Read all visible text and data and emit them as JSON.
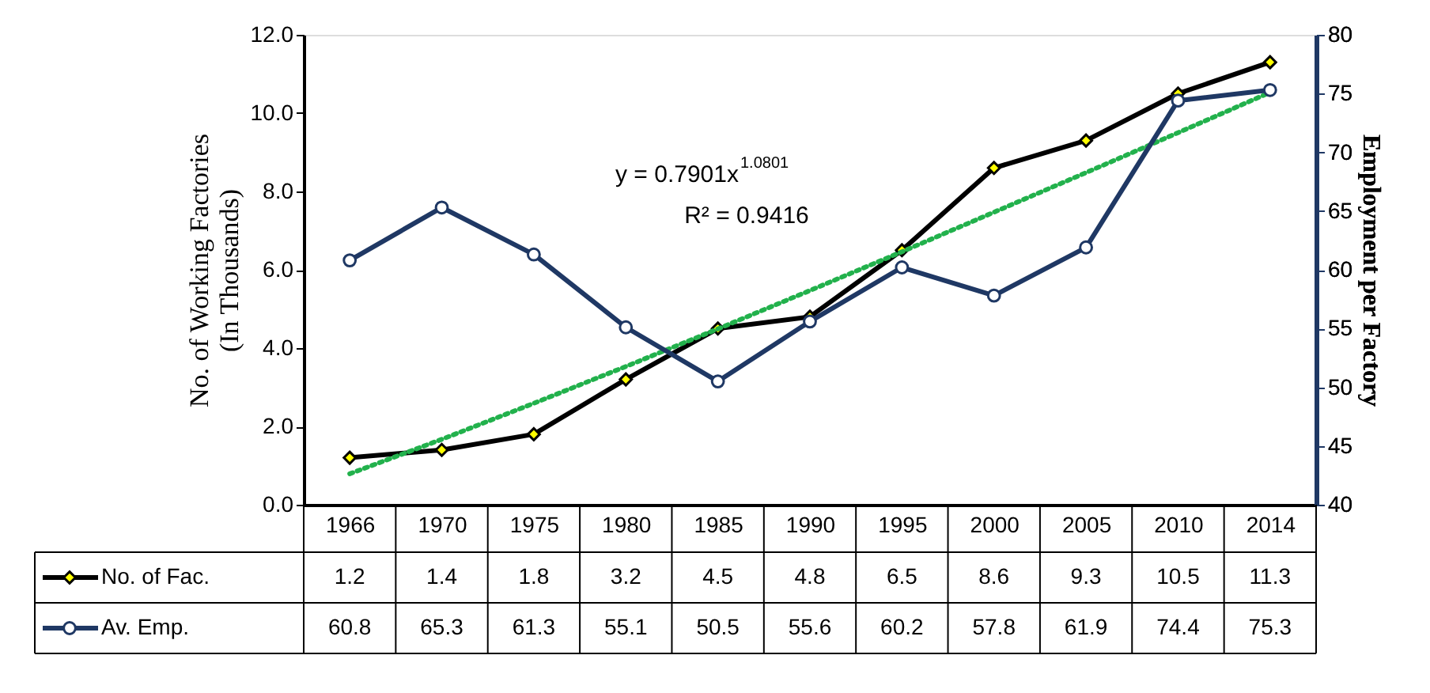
{
  "chart_data": {
    "type": "line",
    "categories": [
      "1966",
      "1970",
      "1975",
      "1980",
      "1985",
      "1990",
      "1995",
      "2000",
      "2005",
      "2010",
      "2014"
    ],
    "series": [
      {
        "name": "No. of Fac.",
        "color": "#000000",
        "marker": "diamond",
        "values": [
          1.2,
          1.4,
          1.8,
          3.2,
          4.5,
          4.8,
          6.5,
          8.6,
          9.3,
          10.5,
          11.3
        ],
        "value_labels": [
          "1.2",
          "1.4",
          "1.8",
          "3.2",
          "4.5",
          "4.8",
          "6.5",
          "8.6",
          "9.3",
          "10.5",
          "11.3"
        ]
      },
      {
        "name": "Av. Emp.",
        "color": "#1f3864",
        "marker": "circle",
        "axis": "y2",
        "values": [
          60.8,
          65.3,
          61.3,
          55.1,
          50.5,
          55.6,
          60.2,
          57.8,
          61.9,
          74.4,
          75.3
        ],
        "value_labels": [
          "60.8",
          "65.3",
          "61.3",
          "55.1",
          "50.5",
          "55.6",
          "60.2",
          "57.8",
          "61.9",
          "74.4",
          "75.3"
        ]
      },
      {
        "color": "#22b14c",
        "marker": "none",
        "line_style": "dotted",
        "values": [
          0.79,
          1.67,
          2.59,
          3.53,
          4.49,
          5.47,
          6.46,
          7.47,
          8.48,
          9.5,
          10.53
        ]
      }
    ],
    "ylabel": "No. of Working Factories\n(In Thousands)",
    "y2label": "Employment per Factory",
    "ylim": [
      0,
      12
    ],
    "yticks": [
      {
        "value": 0,
        "label": "0.0"
      },
      {
        "value": 2,
        "label": "2.0"
      },
      {
        "value": 4,
        "label": "4.0"
      },
      {
        "value": 6,
        "label": "6.0"
      },
      {
        "value": 8,
        "label": "8.0"
      },
      {
        "value": 10,
        "label": "10.0"
      },
      {
        "value": 12,
        "label": "12.0"
      }
    ],
    "y2lim": [
      40,
      80
    ],
    "y2ticks": [
      40,
      45,
      50,
      55,
      60,
      65,
      70,
      75,
      80
    ],
    "annotations": [
      "y = 0.7901x$^{1.0801}$",
      "R² = 0.9416"
    ],
    "legend": "bottom left"
  }
}
